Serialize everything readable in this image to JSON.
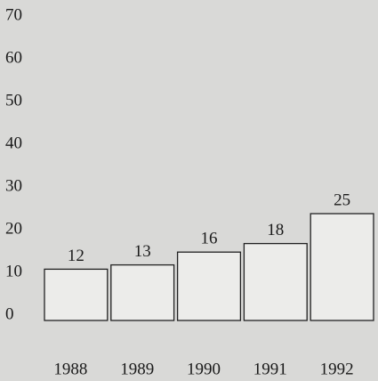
{
  "chart_data": {
    "type": "bar",
    "categories": [
      "1988",
      "1989",
      "1990",
      "1991",
      "1992"
    ],
    "values": [
      12,
      13,
      16,
      18,
      25
    ],
    "color": "#ececea",
    "ylim": [
      0,
      70
    ],
    "yticks": [
      0,
      10,
      20,
      30,
      40,
      50,
      60,
      70
    ],
    "grid": false
  }
}
